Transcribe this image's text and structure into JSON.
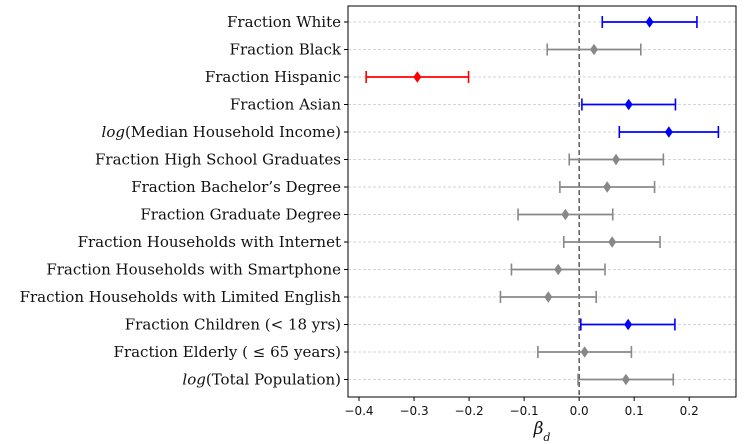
{
  "chart_data": {
    "type": "forest",
    "title": "",
    "xlabel": "β",
    "xlabel_subscript": "d",
    "ylabel": "",
    "xlim": [
      -0.42,
      0.285
    ],
    "xticks": [
      -0.4,
      -0.3,
      -0.2,
      -0.1,
      0.0,
      0.1,
      0.2
    ],
    "xtick_labels": [
      "−0.4",
      "−0.3",
      "−0.2",
      "−0.1",
      "0.0",
      "0.1",
      "0.2"
    ],
    "reference_line": 0.0,
    "grid": "horizontal",
    "colors": {
      "positive_significant": "#0000ff",
      "negative_significant": "#ff0000",
      "not_significant": "#888888",
      "grid": "#c8c8c8",
      "reference": "#333333"
    },
    "rows": [
      {
        "label": "Fraction White",
        "label_parts": [
          {
            "text": "Fraction White",
            "italic": false
          }
        ],
        "estimate": 0.128,
        "lower": 0.042,
        "upper": 0.214,
        "status": "positive_significant"
      },
      {
        "label": "Fraction Black",
        "label_parts": [
          {
            "text": "Fraction Black",
            "italic": false
          }
        ],
        "estimate": 0.027,
        "lower": -0.058,
        "upper": 0.112,
        "status": "not_significant"
      },
      {
        "label": "Fraction Hispanic",
        "label_parts": [
          {
            "text": "Fraction Hispanic",
            "italic": false
          }
        ],
        "estimate": -0.294,
        "lower": -0.387,
        "upper": -0.201,
        "status": "negative_significant"
      },
      {
        "label": "Fraction Asian",
        "label_parts": [
          {
            "text": "Fraction Asian",
            "italic": false
          }
        ],
        "estimate": 0.09,
        "lower": 0.005,
        "upper": 0.175,
        "status": "positive_significant"
      },
      {
        "label": "log(Median Household Income)",
        "label_parts": [
          {
            "text": "log",
            "italic": true
          },
          {
            "text": "(Median Household Income)",
            "italic": false
          }
        ],
        "estimate": 0.163,
        "lower": 0.073,
        "upper": 0.253,
        "status": "positive_significant"
      },
      {
        "label": "Fraction High School Graduates",
        "label_parts": [
          {
            "text": "Fraction High School Graduates",
            "italic": false
          }
        ],
        "estimate": 0.067,
        "lower": -0.018,
        "upper": 0.153,
        "status": "not_significant"
      },
      {
        "label": "Fraction Bachelor’s Degree",
        "label_parts": [
          {
            "text": "Fraction Bachelor’s Degree",
            "italic": false
          }
        ],
        "estimate": 0.051,
        "lower": -0.035,
        "upper": 0.137,
        "status": "not_significant"
      },
      {
        "label": "Fraction Graduate Degree",
        "label_parts": [
          {
            "text": "Fraction Graduate Degree",
            "italic": false
          }
        ],
        "estimate": -0.025,
        "lower": -0.111,
        "upper": 0.061,
        "status": "not_significant"
      },
      {
        "label": "Fraction Households with Internet",
        "label_parts": [
          {
            "text": "Fraction Households with Internet",
            "italic": false
          }
        ],
        "estimate": 0.06,
        "lower": -0.028,
        "upper": 0.147,
        "status": "not_significant"
      },
      {
        "label": "Fraction Households with Smartphone",
        "label_parts": [
          {
            "text": "Fraction Households with Smartphone",
            "italic": false
          }
        ],
        "estimate": -0.038,
        "lower": -0.123,
        "upper": 0.047,
        "status": "not_significant"
      },
      {
        "label": "Fraction Households with Limited English",
        "label_parts": [
          {
            "text": "Fraction Households with Limited English",
            "italic": false
          }
        ],
        "estimate": -0.056,
        "lower": -0.143,
        "upper": 0.031,
        "status": "not_significant"
      },
      {
        "label": "Fraction Children (< 18 yrs)",
        "label_parts": [
          {
            "text": "Fraction Children (< 18 yrs)",
            "italic": false
          }
        ],
        "estimate": 0.089,
        "lower": 0.003,
        "upper": 0.174,
        "status": "positive_significant"
      },
      {
        "label": "Fraction Elderly ( ≤ 65 years)",
        "label_parts": [
          {
            "text": "Fraction Elderly ( ≤ 65 years)",
            "italic": false
          }
        ],
        "estimate": 0.01,
        "lower": -0.075,
        "upper": 0.095,
        "status": "not_significant"
      },
      {
        "label": "log(Total Population)",
        "label_parts": [
          {
            "text": "log",
            "italic": true
          },
          {
            "text": "(Total Population)",
            "italic": false
          }
        ],
        "estimate": 0.085,
        "lower": -0.002,
        "upper": 0.171,
        "status": "not_significant"
      }
    ]
  }
}
